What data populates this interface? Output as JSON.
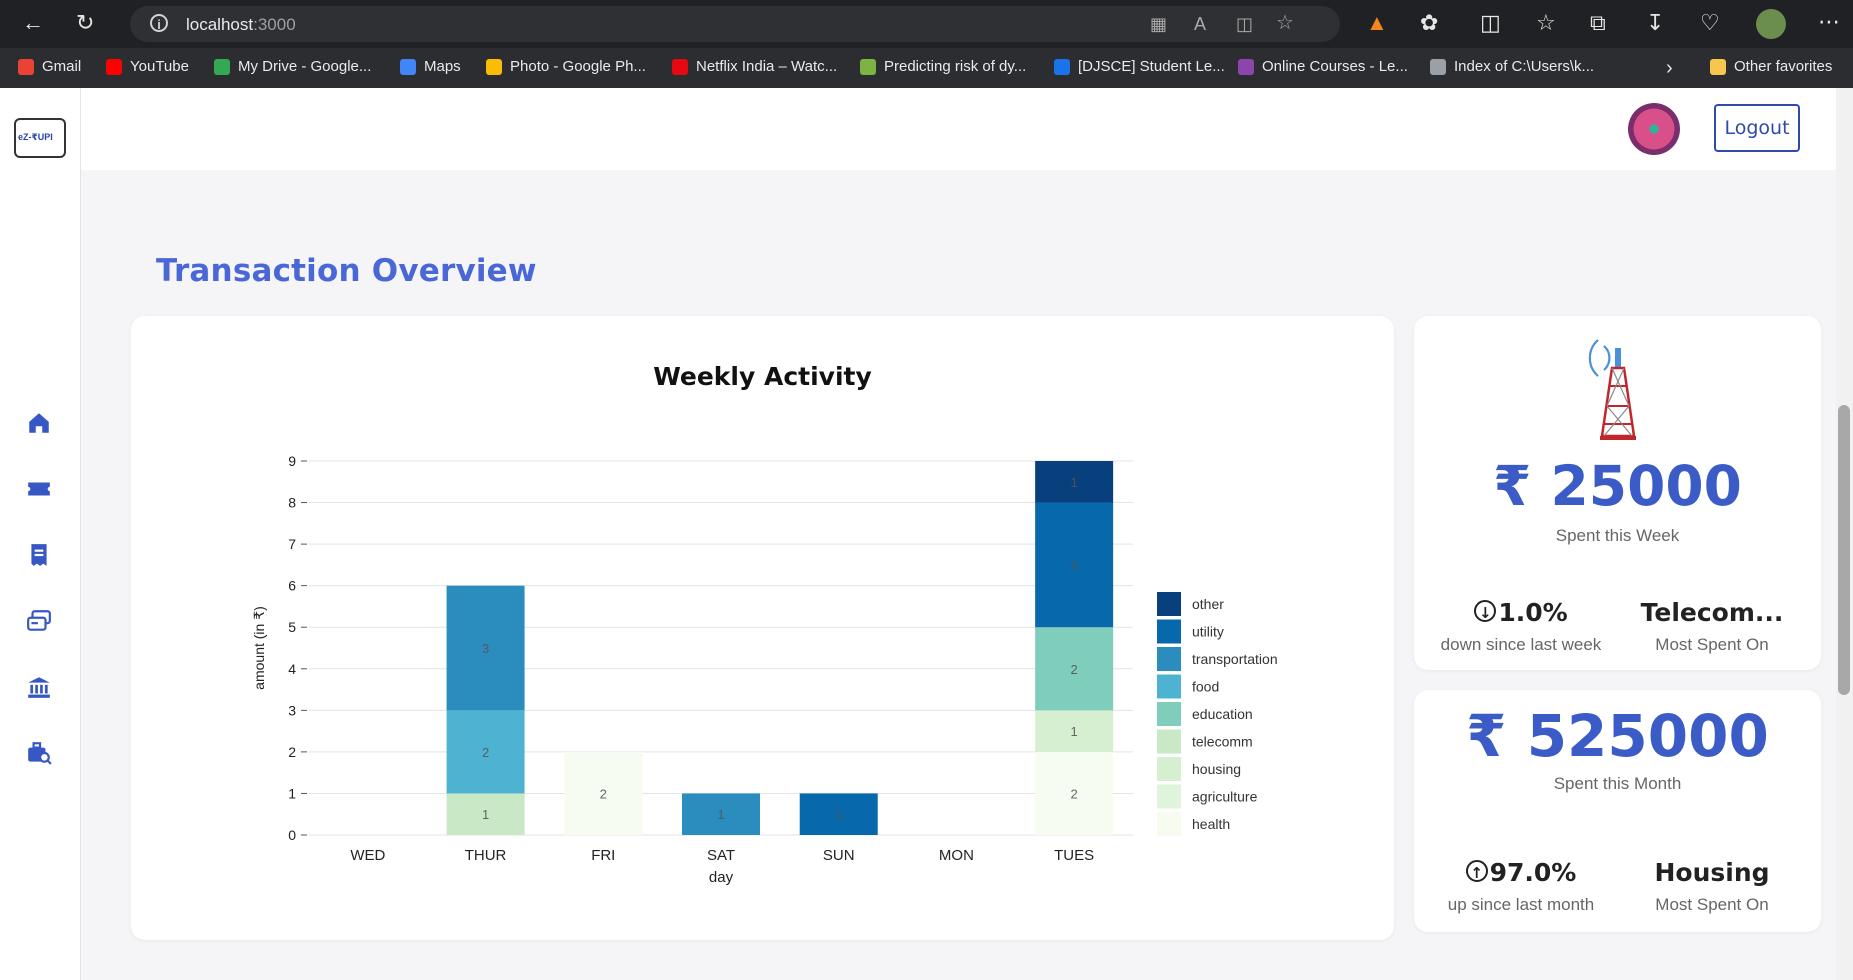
{
  "browser": {
    "url_host": "localhost",
    "url_port": ":3000",
    "bookmarks": [
      {
        "label": "Gmail",
        "color": "#ea4335"
      },
      {
        "label": "YouTube",
        "color": "#ff0000"
      },
      {
        "label": "My Drive - Google...",
        "color": "#34a853"
      },
      {
        "label": "Maps",
        "color": "#4285f4"
      },
      {
        "label": "Photo - Google Ph...",
        "color": "#fbbc05"
      },
      {
        "label": "Netflix India – Watc...",
        "color": "#e50914"
      },
      {
        "label": "Predicting risk of dy...",
        "color": "#7cb342"
      },
      {
        "label": "[DJSCE] Student Le...",
        "color": "#1a73e8"
      },
      {
        "label": "Online Courses - Le...",
        "color": "#8e44ad"
      },
      {
        "label": "Index of C:\\Users\\k...",
        "color": "#9aa0a6"
      },
      {
        "label": "Other favorites",
        "color": "#f6c64f"
      }
    ]
  },
  "app": {
    "logo_text": "eZ-₹UPI",
    "logout_label": "Logout",
    "page_title": "Transaction Overview"
  },
  "chart_data": {
    "type": "bar",
    "stacked": true,
    "title": "Weekly Activity",
    "xlabel": "day",
    "ylabel": "amount (in ₹)",
    "categories": [
      "WED",
      "THUR",
      "FRI",
      "SAT",
      "SUN",
      "MON",
      "TUES"
    ],
    "ylim": [
      0,
      9
    ],
    "yticks": [
      0,
      1,
      2,
      3,
      4,
      5,
      6,
      7,
      8,
      9
    ],
    "legend_position": "right",
    "series": [
      {
        "name": "health",
        "color": "#f7fcf0",
        "values": [
          0,
          0,
          2,
          0,
          0,
          0,
          2
        ]
      },
      {
        "name": "agriculture",
        "color": "#e0f3db",
        "values": [
          0,
          0,
          0,
          0,
          0,
          0,
          0
        ]
      },
      {
        "name": "housing",
        "color": "#d6efd0",
        "values": [
          0,
          0,
          0,
          0,
          0,
          0,
          1
        ]
      },
      {
        "name": "telecomm",
        "color": "#c9e8c6",
        "values": [
          0,
          1,
          0,
          0,
          0,
          0,
          0
        ]
      },
      {
        "name": "education",
        "color": "#7fcdbb",
        "values": [
          0,
          0,
          0,
          0,
          0,
          0,
          2
        ]
      },
      {
        "name": "food",
        "color": "#4eb3d3",
        "values": [
          0,
          2,
          0,
          0,
          0,
          0,
          0
        ]
      },
      {
        "name": "transportation",
        "color": "#2b8cbe",
        "values": [
          0,
          3,
          0,
          1,
          0,
          0,
          0
        ]
      },
      {
        "name": "utility",
        "color": "#0868ac",
        "values": [
          0,
          0,
          0,
          0,
          1,
          0,
          3
        ]
      },
      {
        "name": "other",
        "color": "#08407e",
        "values": [
          0,
          0,
          0,
          0,
          0,
          0,
          1
        ]
      }
    ],
    "legend_order": [
      "other",
      "utility",
      "transportation",
      "food",
      "education",
      "telecomm",
      "housing",
      "agriculture",
      "health"
    ]
  },
  "weekly_card": {
    "amount": "₹ 25000",
    "amount_label": "Spent this Week",
    "change_value": "1.0%",
    "change_direction": "down",
    "change_label": "down since last week",
    "most_spent_value": "Telecom...",
    "most_spent_label": "Most Spent On"
  },
  "monthly_card": {
    "amount": "₹ 525000",
    "amount_label": "Spent this Month",
    "change_value": "97.0%",
    "change_direction": "up",
    "change_label": "up since last month",
    "most_spent_value": "Housing",
    "most_spent_label": "Most Spent On"
  }
}
